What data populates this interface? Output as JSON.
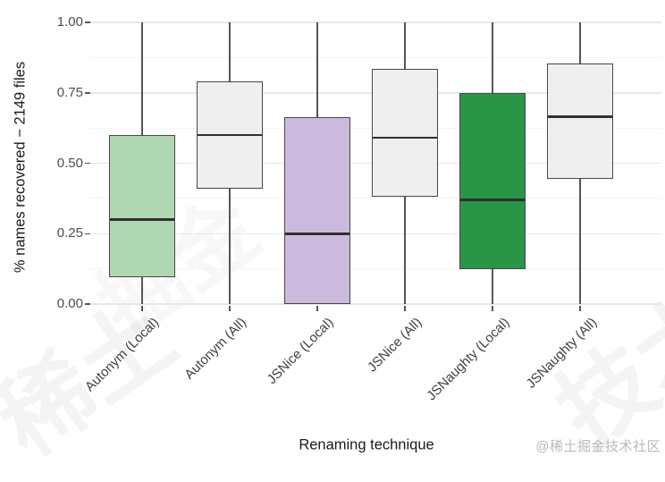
{
  "watermark": {
    "badge": "@稀土掘金技术社区",
    "glyphs": [
      "稀土",
      "掘金",
      "技术"
    ]
  },
  "chart_data": {
    "type": "boxplot",
    "title": "",
    "xlabel": "Renaming technique",
    "ylabel": "% names recovered − 2149 files",
    "ylim": [
      0,
      1
    ],
    "yticks": [
      {
        "value": 0.0,
        "label": "0.00"
      },
      {
        "value": 0.25,
        "label": "0.25"
      },
      {
        "value": 0.5,
        "label": "0.50"
      },
      {
        "value": 0.75,
        "label": "0.75"
      },
      {
        "value": 1.0,
        "label": "1.00"
      }
    ],
    "minor_gridlines": [
      0.125,
      0.375,
      0.625,
      0.875
    ],
    "grid": "horizontal, major light gray on white panel, no legend",
    "categories": [
      "Autonym (Local)",
      "Autonym (All)",
      "JSNice (Local)",
      "JSNice (All)",
      "JSNaughty (Local)",
      "JSNaughty (All)"
    ],
    "series": [
      {
        "name": "Autonym (Local)",
        "low": 0.0,
        "q1": 0.095,
        "median": 0.3,
        "q3": 0.6,
        "high": 1.0,
        "fill": "#aed7b2"
      },
      {
        "name": "Autonym (All)",
        "low": 0.0,
        "q1": 0.41,
        "median": 0.6,
        "q3": 0.79,
        "high": 1.0,
        "fill": "#efefef"
      },
      {
        "name": "JSNice (Local)",
        "low": 0.0,
        "q1": 0.0,
        "median": 0.25,
        "q3": 0.665,
        "high": 1.0,
        "fill": "#cbbade"
      },
      {
        "name": "JSNice (All)",
        "low": 0.0,
        "q1": 0.38,
        "median": 0.59,
        "q3": 0.835,
        "high": 1.0,
        "fill": "#efefef"
      },
      {
        "name": "JSNaughty (Local)",
        "low": 0.0,
        "q1": 0.125,
        "median": 0.37,
        "q3": 0.75,
        "high": 1.0,
        "fill": "#2a9547"
      },
      {
        "name": "JSNaughty (All)",
        "low": 0.0,
        "q1": 0.445,
        "median": 0.665,
        "q3": 0.855,
        "high": 1.0,
        "fill": "#efefef"
      }
    ],
    "colors": {
      "panel_bg": "#ffffff",
      "major_gridline": "#e7e7e7",
      "minor_gridline": "#f4f4f4",
      "box_border": "#474747",
      "median_line": "#303030",
      "whisker": "#565656",
      "tick_text": "#4d4d4d",
      "axis_title_text": "#1a1a1a"
    }
  }
}
